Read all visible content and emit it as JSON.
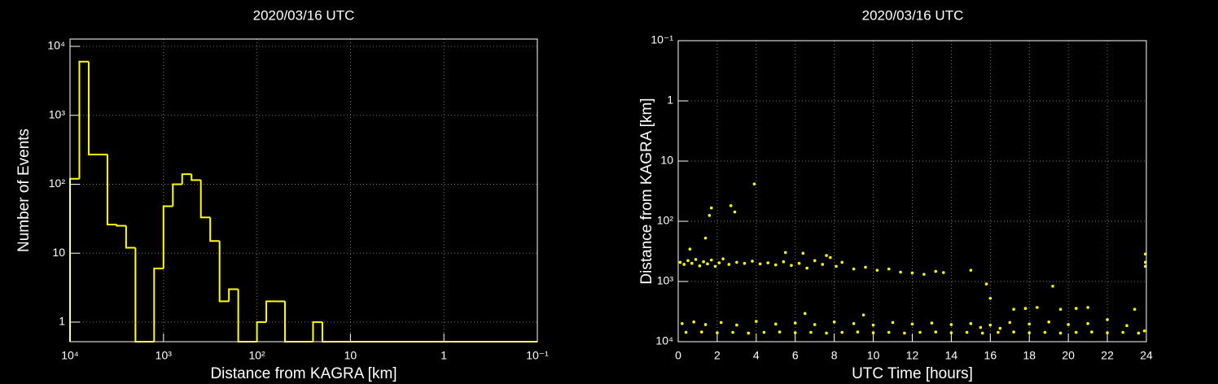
{
  "chart_data": [
    {
      "type": "histogram",
      "title": "2020/03/16 UTC",
      "x_label": "Distance from KAGRA [km]",
      "y_label": "Number of Events",
      "color": "#ffff00",
      "bins": [
        10000,
        7943,
        6310,
        5012,
        3981,
        3162,
        2512,
        1995,
        1585,
        1259,
        1000,
        794.3,
        631,
        501.2,
        398.1,
        316.2,
        251.2,
        199.5,
        158.5,
        125.9,
        100,
        79.43,
        63.1,
        50.12,
        39.81,
        31.62,
        25.12,
        19.95,
        15.85,
        12.59,
        10,
        7.943,
        6.31,
        5.012,
        3.981,
        3.162,
        2.512,
        1.995,
        1.585,
        1.259,
        1,
        0.7943,
        0.631,
        0.5012,
        0.3981,
        0.3162,
        0.2512,
        0.1995,
        0.1585,
        0.1259,
        0.1
      ],
      "values": [
        120,
        6000,
        270,
        270,
        26,
        25,
        12,
        0,
        0,
        6,
        48,
        100,
        140,
        115,
        33,
        15,
        2,
        3,
        0,
        0,
        1,
        2,
        2,
        0,
        0,
        0,
        1,
        0,
        0,
        0,
        0,
        0,
        0,
        0,
        0,
        0,
        0,
        0,
        0,
        0,
        0,
        0,
        0,
        0,
        0,
        0,
        0,
        0,
        0,
        0
      ],
      "xlim": [
        10000,
        0.1
      ],
      "ylim": [
        0.52,
        12770
      ],
      "log_x": true,
      "log_y": true,
      "grid": true,
      "xticks": [
        {
          "value": 10000,
          "label": "10⁴"
        },
        {
          "value": 1000,
          "label": "10³"
        },
        {
          "value": 100,
          "label": "10²"
        },
        10,
        1,
        {
          "value": 0.1,
          "label": "10⁻¹"
        }
      ],
      "yticks": [
        1,
        10,
        {
          "value": 100,
          "label": "10²"
        },
        {
          "value": 1000,
          "label": "10³"
        },
        {
          "value": 10000,
          "label": "10⁴"
        }
      ]
    },
    {
      "type": "scatter",
      "title": "2020/03/16 UTC",
      "x_label": "UTC Time [hours]",
      "y_label": "Distance from KAGRA [km]",
      "color": "#ffff00",
      "x": [
        0.1,
        0.3,
        0.5,
        0.7,
        0.9,
        1.1,
        1.3,
        1.5,
        1.7,
        1.9,
        2.1,
        2.3,
        0.6,
        1.4,
        1.6,
        1.7,
        2.7,
        2.9,
        3.9,
        2.6,
        3.0,
        3.4,
        3.8,
        4.2,
        4.6,
        5.0,
        5.4,
        5.8,
        6.2,
        6.6,
        7.0,
        7.4,
        7.8,
        8.1,
        5.5,
        6.4,
        7.6,
        8.4,
        9.0,
        9.6,
        10.2,
        10.8,
        11.4,
        12.0,
        12.6,
        13.2,
        13.6,
        15.0,
        15.8,
        16.0,
        17.2,
        17.8,
        18.4,
        19.2,
        19.6,
        20.4,
        21.0,
        23.4,
        23.95,
        23.95,
        23.95,
        0.2,
        0.8,
        1.4,
        2.2,
        3.0,
        4.0,
        5.0,
        6.0,
        7.0,
        8.0,
        9.0,
        10.0,
        11.0,
        12.0,
        13.0,
        14.0,
        15.0,
        16.0,
        17.0,
        18.0,
        19.0,
        20.0,
        21.0,
        22.0,
        23.0,
        15.5,
        16.5,
        9.5,
        6.5,
        0.4,
        1.2,
        2.0,
        2.8,
        3.6,
        4.4,
        5.2,
        6.0,
        6.8,
        7.6,
        8.4,
        9.2,
        10.0,
        10.8,
        11.6,
        12.4,
        13.2,
        14.0,
        14.8,
        15.6,
        16.4,
        17.2,
        18.0,
        18.8,
        19.6,
        20.4,
        21.2,
        22.0,
        22.8,
        23.6,
        23.9
      ],
      "y": [
        480,
        520,
        450,
        500,
        430,
        550,
        470,
        510,
        440,
        560,
        490,
        420,
        290,
        190,
        80,
        60,
        55,
        70,
        24,
        520,
        480,
        500,
        460,
        510,
        490,
        530,
        470,
        540,
        500,
        600,
        450,
        520,
        400,
        560,
        330,
        340,
        370,
        480,
        620,
        580,
        650,
        620,
        700,
        720,
        760,
        680,
        710,
        650,
        1100,
        1900,
        2900,
        2800,
        2700,
        1200,
        2900,
        2800,
        2700,
        2900,
        350,
        480,
        560,
        5000,
        4700,
        5200,
        4800,
        5300,
        4600,
        5100,
        4900,
        5200,
        4700,
        5000,
        5300,
        4800,
        5100,
        4900,
        5200,
        5000,
        5300,
        4800,
        5100,
        4700,
        5200,
        5000,
        4300,
        5400,
        5800,
        6000,
        3600,
        3400,
        7000,
        6900,
        7100,
        7000,
        7200,
        7000,
        6900,
        7100,
        7000,
        7200,
        7000,
        6900,
        7100,
        7000,
        7200,
        7000,
        6900,
        7100,
        7000,
        7200,
        7000,
        6900,
        7100,
        7000,
        7200,
        7000,
        6900,
        7100,
        7000,
        7200,
        6600
      ],
      "xlim": [
        0,
        24
      ],
      "ylim": [
        10000,
        0.1
      ],
      "log_y": true,
      "grid": true,
      "xticks": [
        0,
        2,
        4,
        6,
        8,
        10,
        12,
        14,
        16,
        18,
        20,
        22,
        24
      ],
      "yticks": [
        {
          "value": 0.1,
          "label": "10⁻¹"
        },
        1,
        10,
        {
          "value": 100,
          "label": "10²"
        },
        {
          "value": 1000,
          "label": "10³"
        },
        {
          "value": 10000,
          "label": "10⁴"
        }
      ]
    }
  ]
}
